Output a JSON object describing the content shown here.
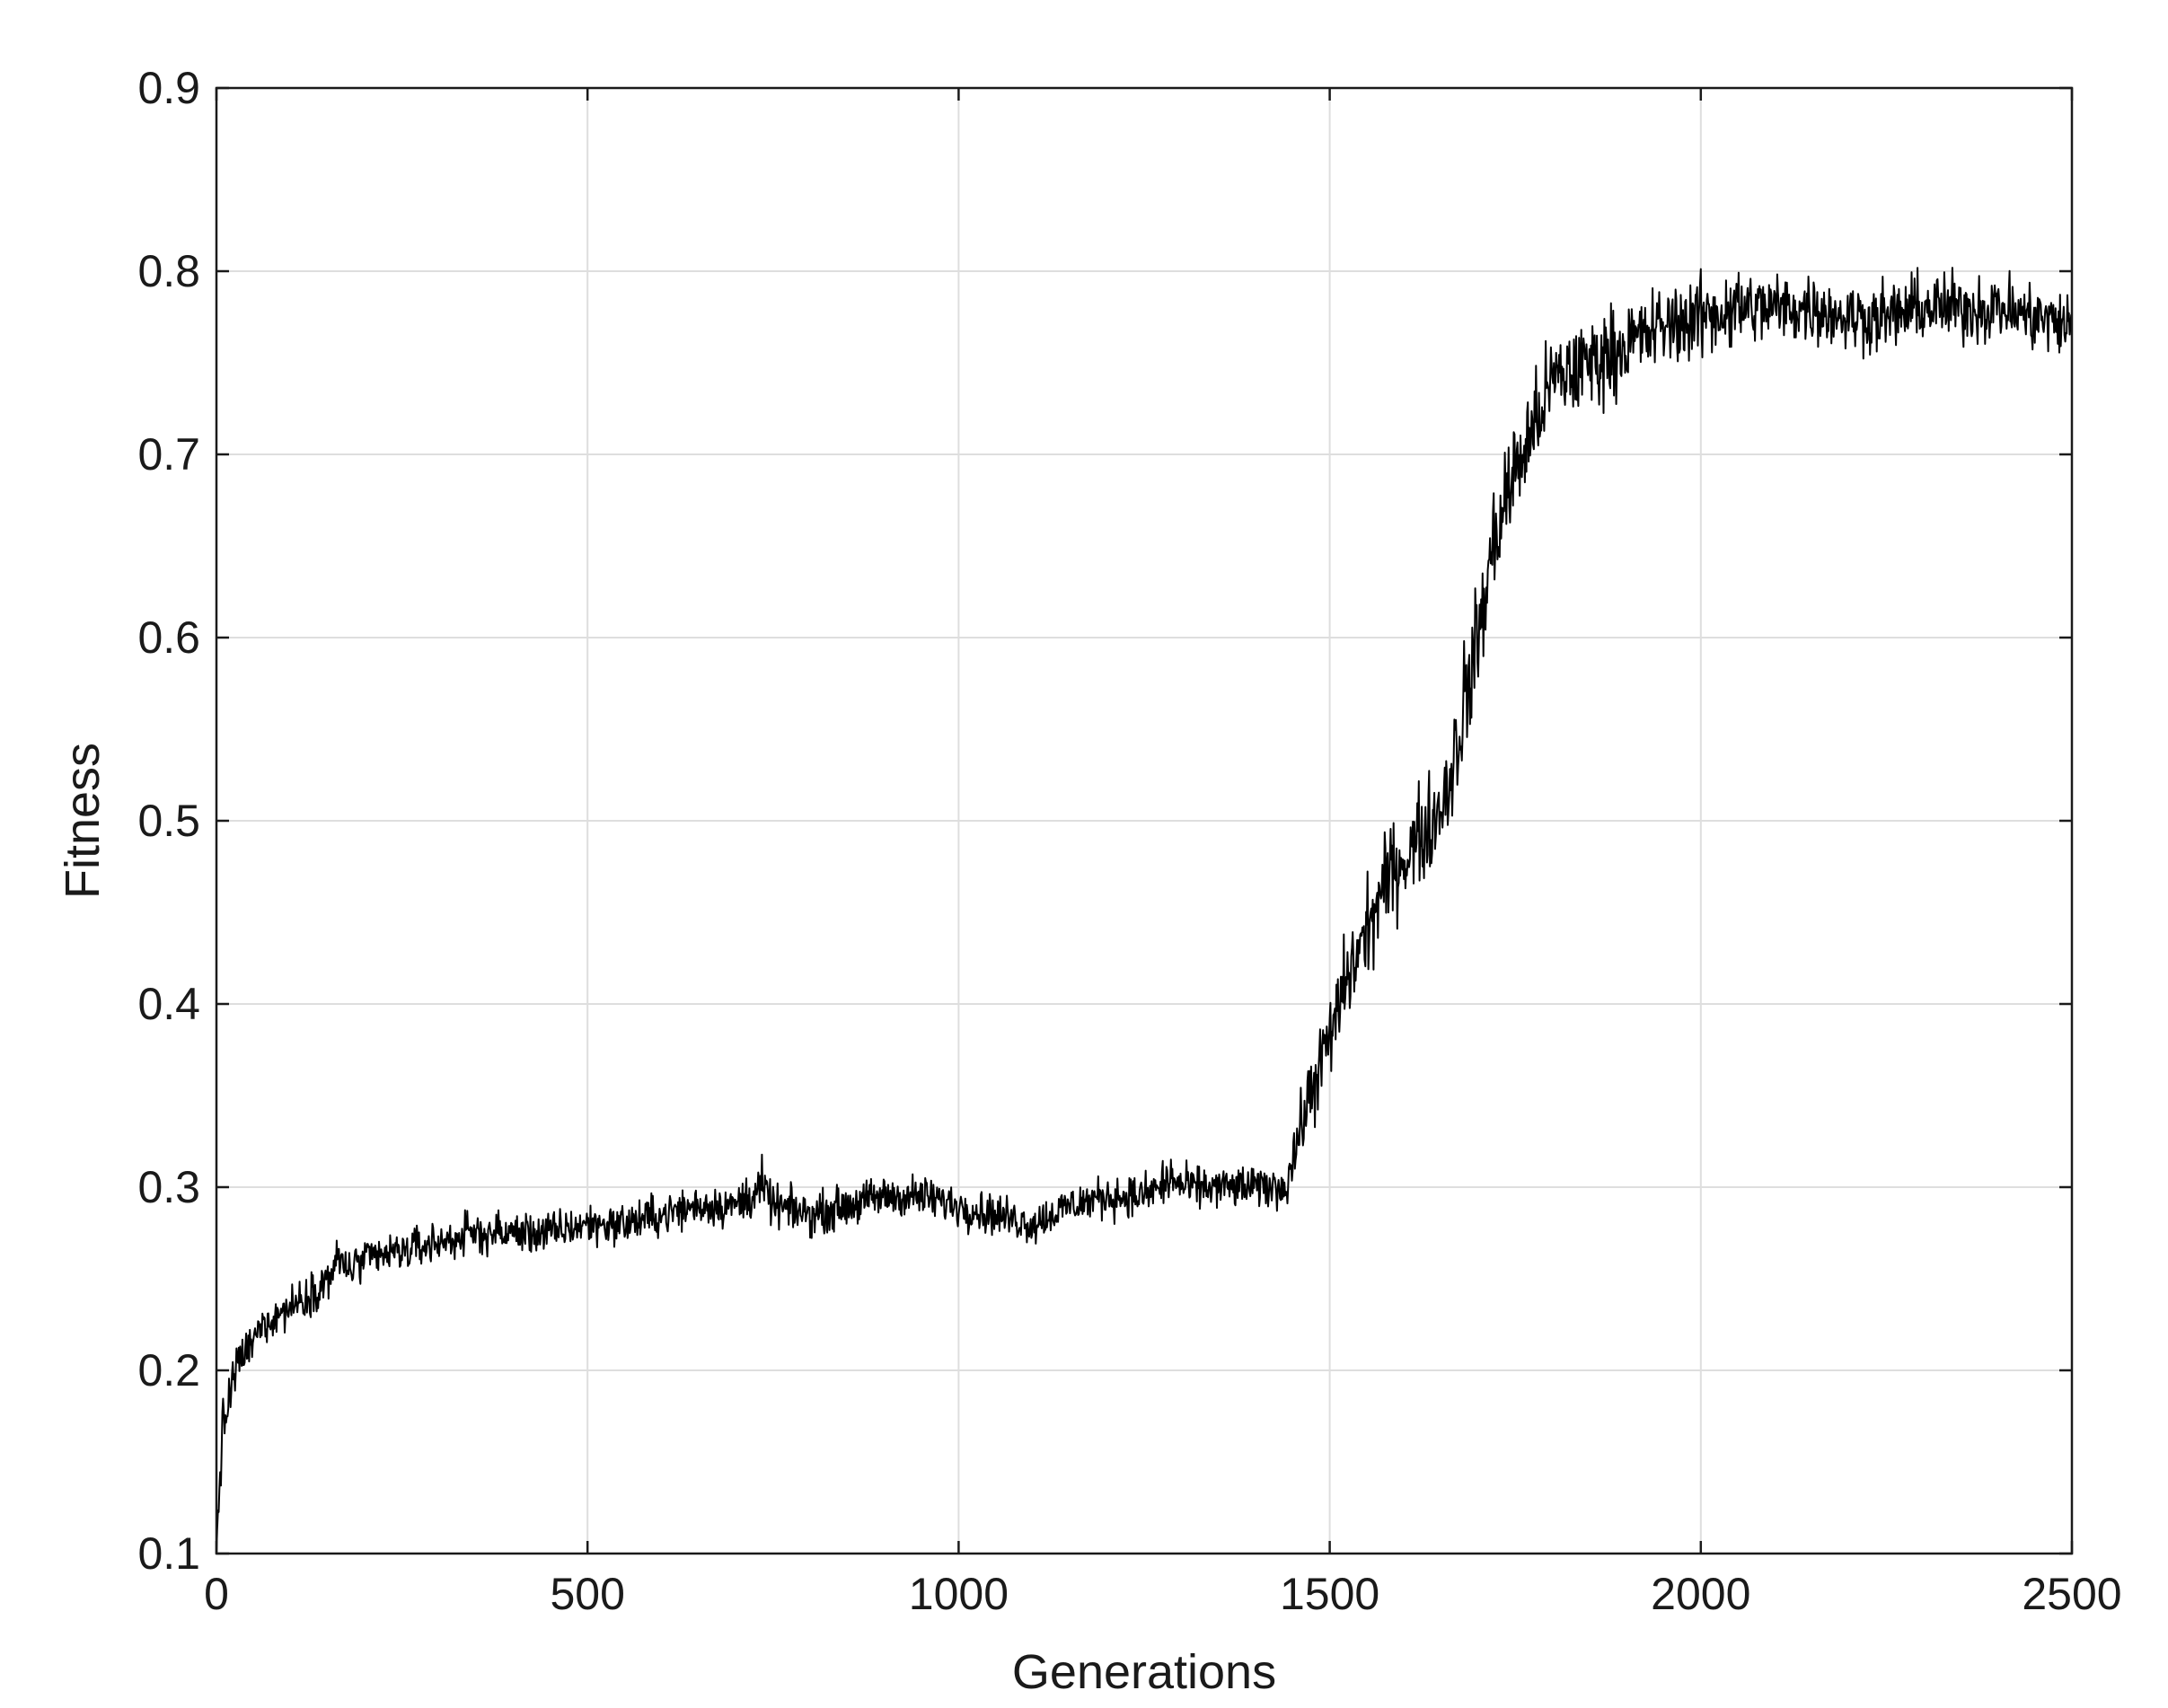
{
  "chart_data": {
    "type": "line",
    "title": "",
    "xlabel": "Generations",
    "ylabel": "Fitness",
    "xlim": [
      0,
      2500
    ],
    "ylim": [
      0.1,
      0.9
    ],
    "xticks": [
      0,
      500,
      1000,
      1500,
      2000,
      2500
    ],
    "xtick_labels": [
      "0",
      "500",
      "1000",
      "1500",
      "2000",
      "2500"
    ],
    "yticks": [
      0.1,
      0.2,
      0.3,
      0.4,
      0.5,
      0.6,
      0.7,
      0.8,
      0.9
    ],
    "ytick_labels": [
      "0.1",
      "0.2",
      "0.3",
      "0.4",
      "0.5",
      "0.6",
      "0.7",
      "0.8",
      "0.9"
    ],
    "grid": true,
    "line_color": "#000000",
    "series": [
      {
        "x": [
          0,
          5,
          10,
          20,
          30,
          40,
          50,
          60,
          80,
          100,
          120,
          150,
          165,
          180,
          200,
          250,
          300,
          350,
          400,
          450,
          500,
          550,
          600,
          650,
          700,
          735,
          750,
          800,
          850,
          900,
          950,
          1000,
          1050,
          1100,
          1150,
          1200,
          1250,
          1290,
          1300,
          1350,
          1400,
          1440,
          1460,
          1480,
          1500,
          1520,
          1540,
          1560,
          1580,
          1600,
          1620,
          1640,
          1660,
          1680,
          1700,
          1720,
          1740,
          1760,
          1780,
          1800,
          1850,
          1900,
          1950,
          2000,
          2050,
          2100,
          2150,
          2200,
          2250,
          2300,
          2350,
          2400,
          2450,
          2500
        ],
        "y": [
          0.1,
          0.15,
          0.17,
          0.19,
          0.205,
          0.21,
          0.215,
          0.225,
          0.23,
          0.235,
          0.24,
          0.25,
          0.26,
          0.255,
          0.26,
          0.265,
          0.27,
          0.275,
          0.275,
          0.275,
          0.28,
          0.28,
          0.285,
          0.29,
          0.29,
          0.3,
          0.29,
          0.285,
          0.29,
          0.295,
          0.295,
          0.29,
          0.285,
          0.28,
          0.29,
          0.295,
          0.295,
          0.305,
          0.3,
          0.3,
          0.3,
          0.3,
          0.33,
          0.36,
          0.38,
          0.41,
          0.43,
          0.45,
          0.47,
          0.48,
          0.49,
          0.5,
          0.52,
          0.56,
          0.6,
          0.65,
          0.68,
          0.7,
          0.72,
          0.74,
          0.75,
          0.76,
          0.77,
          0.775,
          0.78,
          0.78,
          0.78,
          0.775,
          0.775,
          0.78,
          0.78,
          0.78,
          0.775,
          0.77
        ],
        "noise": [
          0.04,
          0.03,
          0.02,
          0.02,
          0.015,
          0.015,
          0.015,
          0.015,
          0.015,
          0.015,
          0.015,
          0.015,
          0.02,
          0.015,
          0.015,
          0.015,
          0.015,
          0.015,
          0.015,
          0.015,
          0.015,
          0.015,
          0.015,
          0.015,
          0.015,
          0.02,
          0.015,
          0.015,
          0.015,
          0.015,
          0.015,
          0.015,
          0.015,
          0.015,
          0.015,
          0.015,
          0.015,
          0.02,
          0.015,
          0.015,
          0.015,
          0.015,
          0.025,
          0.03,
          0.03,
          0.035,
          0.035,
          0.035,
          0.035,
          0.035,
          0.035,
          0.035,
          0.04,
          0.045,
          0.045,
          0.04,
          0.04,
          0.04,
          0.035,
          0.035,
          0.035,
          0.03,
          0.03,
          0.03,
          0.03,
          0.025,
          0.025,
          0.025,
          0.025,
          0.025,
          0.025,
          0.025,
          0.025,
          0.025
        ]
      }
    ]
  }
}
